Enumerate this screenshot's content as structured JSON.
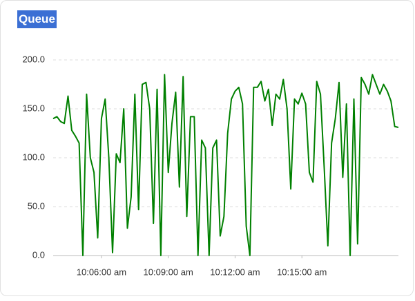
{
  "chart_data": {
    "type": "line",
    "title": "Queue",
    "x": [
      "10:03:50 am",
      "10:04:00 am",
      "10:04:10 am",
      "10:04:20 am",
      "10:04:30 am",
      "10:04:40 am",
      "10:04:50 am",
      "10:05:00 am",
      "10:05:10 am",
      "10:05:20 am",
      "10:05:30 am",
      "10:05:40 am",
      "10:05:50 am",
      "10:06:00 am",
      "10:06:10 am",
      "10:06:20 am",
      "10:06:30 am",
      "10:06:40 am",
      "10:06:50 am",
      "10:07:00 am",
      "10:07:10 am",
      "10:07:20 am",
      "10:07:30 am",
      "10:07:40 am",
      "10:07:50 am",
      "10:08:00 am",
      "10:08:10 am",
      "10:08:20 am",
      "10:08:30 am",
      "10:08:40 am",
      "10:08:50 am",
      "10:09:00 am",
      "10:09:10 am",
      "10:09:20 am",
      "10:09:30 am",
      "10:09:40 am",
      "10:09:50 am",
      "10:10:00 am",
      "10:10:10 am",
      "10:10:20 am",
      "10:10:30 am",
      "10:10:40 am",
      "10:10:50 am",
      "10:11:00 am",
      "10:11:10 am",
      "10:11:20 am",
      "10:11:30 am",
      "10:11:40 am",
      "10:11:50 am",
      "10:12:00 am",
      "10:12:10 am",
      "10:12:20 am",
      "10:12:30 am",
      "10:12:40 am",
      "10:12:50 am",
      "10:13:00 am",
      "10:13:10 am",
      "10:13:20 am",
      "10:13:30 am",
      "10:13:40 am",
      "10:13:50 am",
      "10:14:00 am",
      "10:14:10 am",
      "10:14:20 am",
      "10:14:30 am",
      "10:14:40 am",
      "10:14:50 am",
      "10:15:00 am",
      "10:15:10 am",
      "10:15:20 am",
      "10:15:30 am",
      "10:15:40 am",
      "10:15:50 am",
      "10:16:00 am",
      "10:16:10 am",
      "10:16:20 am",
      "10:16:30 am",
      "10:16:40 am",
      "10:16:50 am",
      "10:17:00 am",
      "10:17:10 am",
      "10:17:20 am",
      "10:17:30 am",
      "10:17:40 am",
      "10:17:50 am",
      "10:18:00 am",
      "10:18:10 am",
      "10:18:20 am",
      "10:18:30 am",
      "10:18:40 am",
      "10:18:50 am",
      "10:19:00 am",
      "10:19:10 am",
      "10:19:20 am"
    ],
    "series": [
      {
        "name": "Queue",
        "color": "#008000",
        "values": [
          140,
          142,
          137,
          135,
          163,
          128,
          122,
          115,
          0,
          165,
          100,
          85,
          18,
          140,
          160,
          100,
          3,
          104,
          95,
          150,
          28,
          60,
          165,
          47,
          175,
          177,
          150,
          33,
          170,
          0,
          185,
          85,
          135,
          167,
          70,
          183,
          40,
          142,
          142,
          0,
          118,
          110,
          0,
          110,
          118,
          20,
          40,
          125,
          160,
          168,
          172,
          155,
          30,
          0,
          172,
          172,
          178,
          158,
          170,
          133,
          165,
          160,
          180,
          150,
          68,
          160,
          155,
          166,
          155,
          85,
          75,
          178,
          165,
          90,
          10,
          115,
          140,
          177,
          80,
          155,
          0,
          160,
          12,
          182,
          175,
          165,
          185,
          175,
          165,
          175,
          168,
          158,
          132,
          131
        ]
      }
    ],
    "xlim": [
      "10:03:50 am",
      "10:19:20 am"
    ],
    "xticks": [
      "10:06:00 am",
      "10:09:00 am",
      "10:12:00 am",
      "10:15:00 am"
    ],
    "ylim": [
      0,
      200
    ],
    "yticks": [
      {
        "value": 0,
        "label": "0.0"
      },
      {
        "value": 50,
        "label": "50.0"
      },
      {
        "value": 100,
        "label": "100.0"
      },
      {
        "value": 150,
        "label": "150.0"
      },
      {
        "value": 200,
        "label": "200.0"
      }
    ],
    "grid": true
  }
}
